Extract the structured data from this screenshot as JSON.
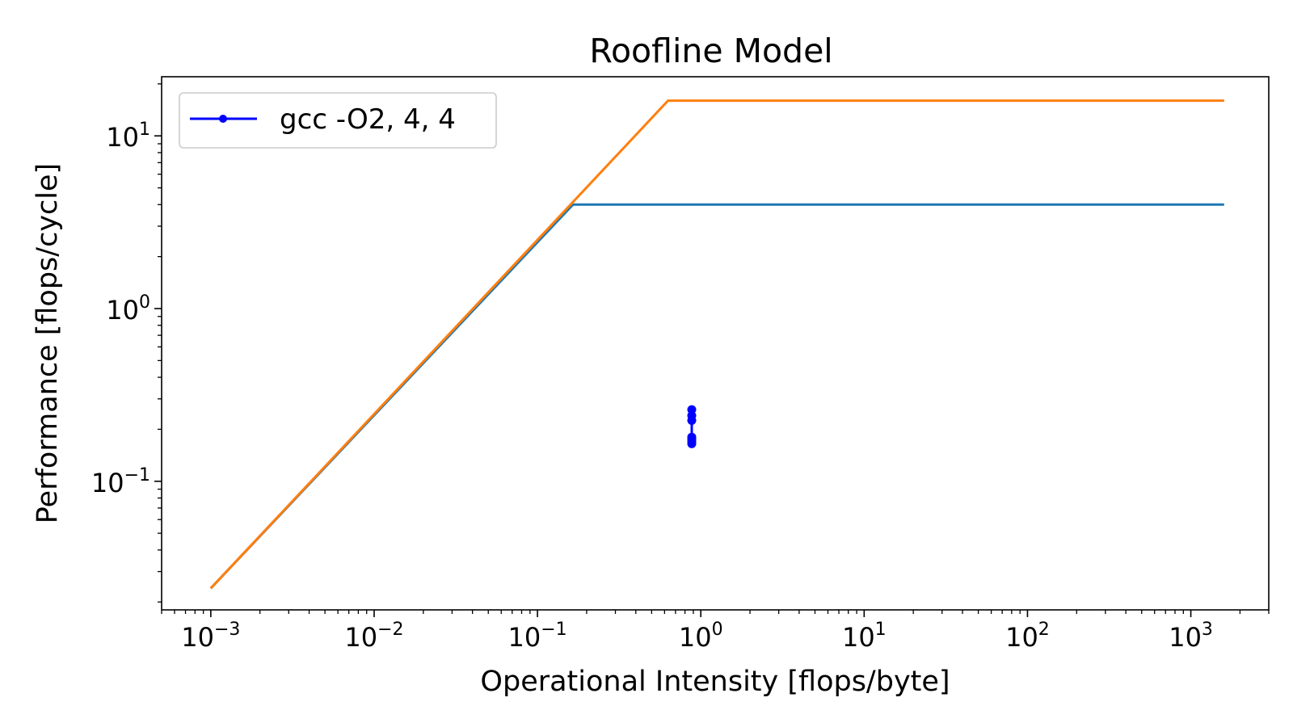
{
  "chart_data": {
    "type": "line",
    "title": "Roofline Model",
    "xlabel": "Operational Intensity [flops/byte]",
    "ylabel": "Performance [flops/cycle]",
    "xscale": "log",
    "yscale": "log",
    "xlim": [
      0.0005,
      3000
    ],
    "ylim": [
      0.018,
      22
    ],
    "grid": false,
    "legend_position": "top-left",
    "x_ticks": [
      {
        "value": 0.001,
        "base": "10",
        "exp": "−3"
      },
      {
        "value": 0.01,
        "base": "10",
        "exp": "−2"
      },
      {
        "value": 0.1,
        "base": "10",
        "exp": "−1"
      },
      {
        "value": 1,
        "base": "10",
        "exp": "0"
      },
      {
        "value": 10,
        "base": "10",
        "exp": "1"
      },
      {
        "value": 100,
        "base": "10",
        "exp": "2"
      },
      {
        "value": 1000,
        "base": "10",
        "exp": "3"
      }
    ],
    "y_ticks": [
      {
        "value": 0.1,
        "base": "10",
        "exp": "−1"
      },
      {
        "value": 1,
        "base": "10",
        "exp": "0"
      },
      {
        "value": 10,
        "base": "10",
        "exp": "1"
      }
    ],
    "series": [
      {
        "color": "#1f77b4",
        "x": [
          0.001,
          0.165,
          1600
        ],
        "y": [
          0.024,
          4,
          4
        ]
      },
      {
        "color": "#ff7f0e",
        "x": [
          0.001,
          0.63,
          1600
        ],
        "y": [
          0.024,
          16,
          16
        ]
      },
      {
        "name": "gcc -O2, 4, 4",
        "color": "#0000ff",
        "marker": "circle",
        "x": [
          0.88,
          0.88,
          0.88,
          0.88,
          0.88,
          0.88,
          0.88
        ],
        "y": [
          0.26,
          0.24,
          0.225,
          0.18,
          0.175,
          0.17,
          0.165
        ]
      }
    ]
  }
}
